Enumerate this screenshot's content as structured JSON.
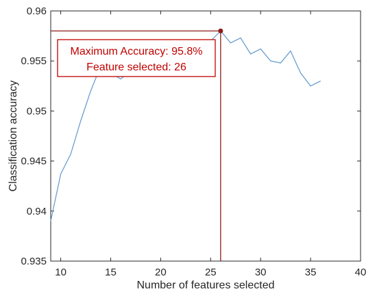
{
  "chart_data": {
    "type": "line",
    "xlabel": "Number of features selected",
    "ylabel": "Classification accuracy",
    "xlim": [
      9,
      40
    ],
    "ylim": [
      0.935,
      0.96
    ],
    "x_ticks": [
      10,
      15,
      20,
      25,
      30,
      35,
      40
    ],
    "y_ticks": [
      0.935,
      0.94,
      0.945,
      0.95,
      0.955,
      0.96
    ],
    "x_tick_labels": [
      "10",
      "15",
      "20",
      "25",
      "30",
      "35",
      "40"
    ],
    "y_tick_labels": [
      "0.935",
      "0.94",
      "0.945",
      "0.95",
      "0.955",
      "0.96"
    ],
    "grid": false,
    "series": [
      {
        "color": "#6a9fd0",
        "x": [
          9,
          10,
          11,
          12,
          13,
          14,
          15,
          16,
          17,
          18,
          19,
          20,
          21,
          22,
          23,
          24,
          25,
          26,
          27,
          28,
          29,
          30,
          31,
          32,
          33,
          34,
          35,
          36
        ],
        "y": [
          0.939,
          0.9437,
          0.9457,
          0.949,
          0.952,
          0.9545,
          0.9538,
          0.9532,
          0.954,
          0.9548,
          0.9552,
          0.9555,
          0.9555,
          0.9558,
          0.956,
          0.9562,
          0.957,
          0.958,
          0.9568,
          0.9573,
          0.9557,
          0.9562,
          0.955,
          0.9548,
          0.956,
          0.9538,
          0.9525,
          0.953
        ]
      }
    ],
    "max_point": {
      "x": 26,
      "y": 0.958,
      "color": "#8b1a1a"
    },
    "annotation": {
      "line1": "Maximum Accuracy: 95.8%",
      "line2": "Feature selected: 26",
      "color": "#c00000"
    }
  }
}
